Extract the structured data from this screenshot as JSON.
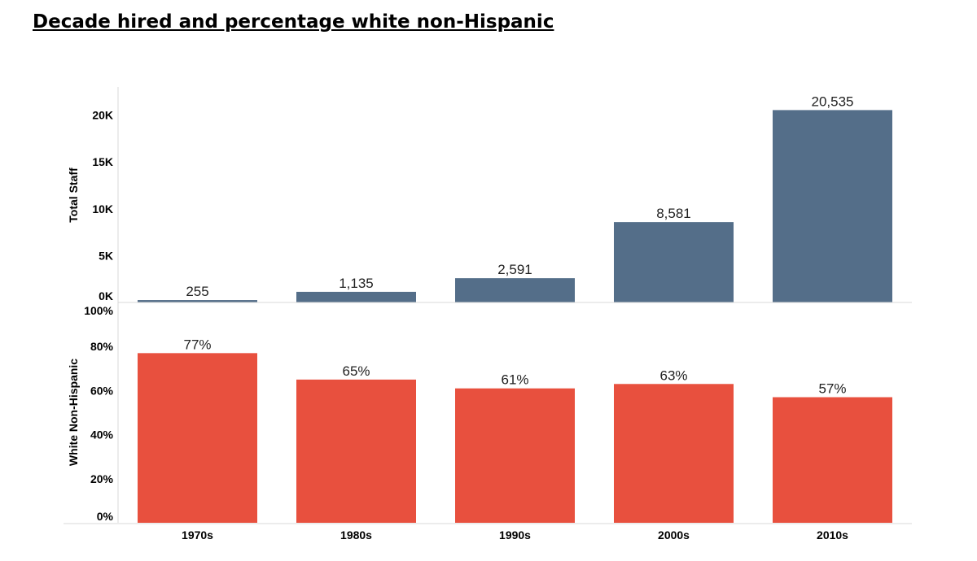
{
  "title": "Decade hired and percentage white non-Hispanic",
  "colors": {
    "top_bar": "#546e89",
    "bottom_bar": "#e8503e",
    "axis": "#d9d9d9"
  },
  "chart_data": [
    {
      "type": "bar",
      "categories": [
        "1970s",
        "1980s",
        "1990s",
        "2000s",
        "2010s"
      ],
      "values": [
        255,
        1135,
        2591,
        8581,
        20535
      ],
      "value_labels": [
        "255",
        "1,135",
        "2,591",
        "8,581",
        "20,535"
      ],
      "title": "",
      "xlabel": "",
      "ylabel": "Total Staff",
      "ylim": [
        0,
        23000
      ],
      "yticks": [
        0,
        5000,
        10000,
        15000,
        20000
      ],
      "ytick_labels": [
        "0K",
        "5K",
        "10K",
        "15K",
        "20K"
      ],
      "grid": false,
      "legend": "none"
    },
    {
      "type": "bar",
      "categories": [
        "1970s",
        "1980s",
        "1990s",
        "2000s",
        "2010s"
      ],
      "values": [
        77,
        65,
        61,
        63,
        57
      ],
      "value_labels": [
        "77%",
        "65%",
        "61%",
        "63%",
        "57%"
      ],
      "title": "",
      "xlabel": "",
      "ylabel": "White Non-Hispanic",
      "ylim": [
        0,
        100
      ],
      "yticks": [
        0,
        20,
        40,
        60,
        80,
        100
      ],
      "ytick_labels": [
        "0%",
        "20%",
        "40%",
        "60%",
        "80%",
        "100%"
      ],
      "grid": false,
      "legend": "none"
    }
  ]
}
